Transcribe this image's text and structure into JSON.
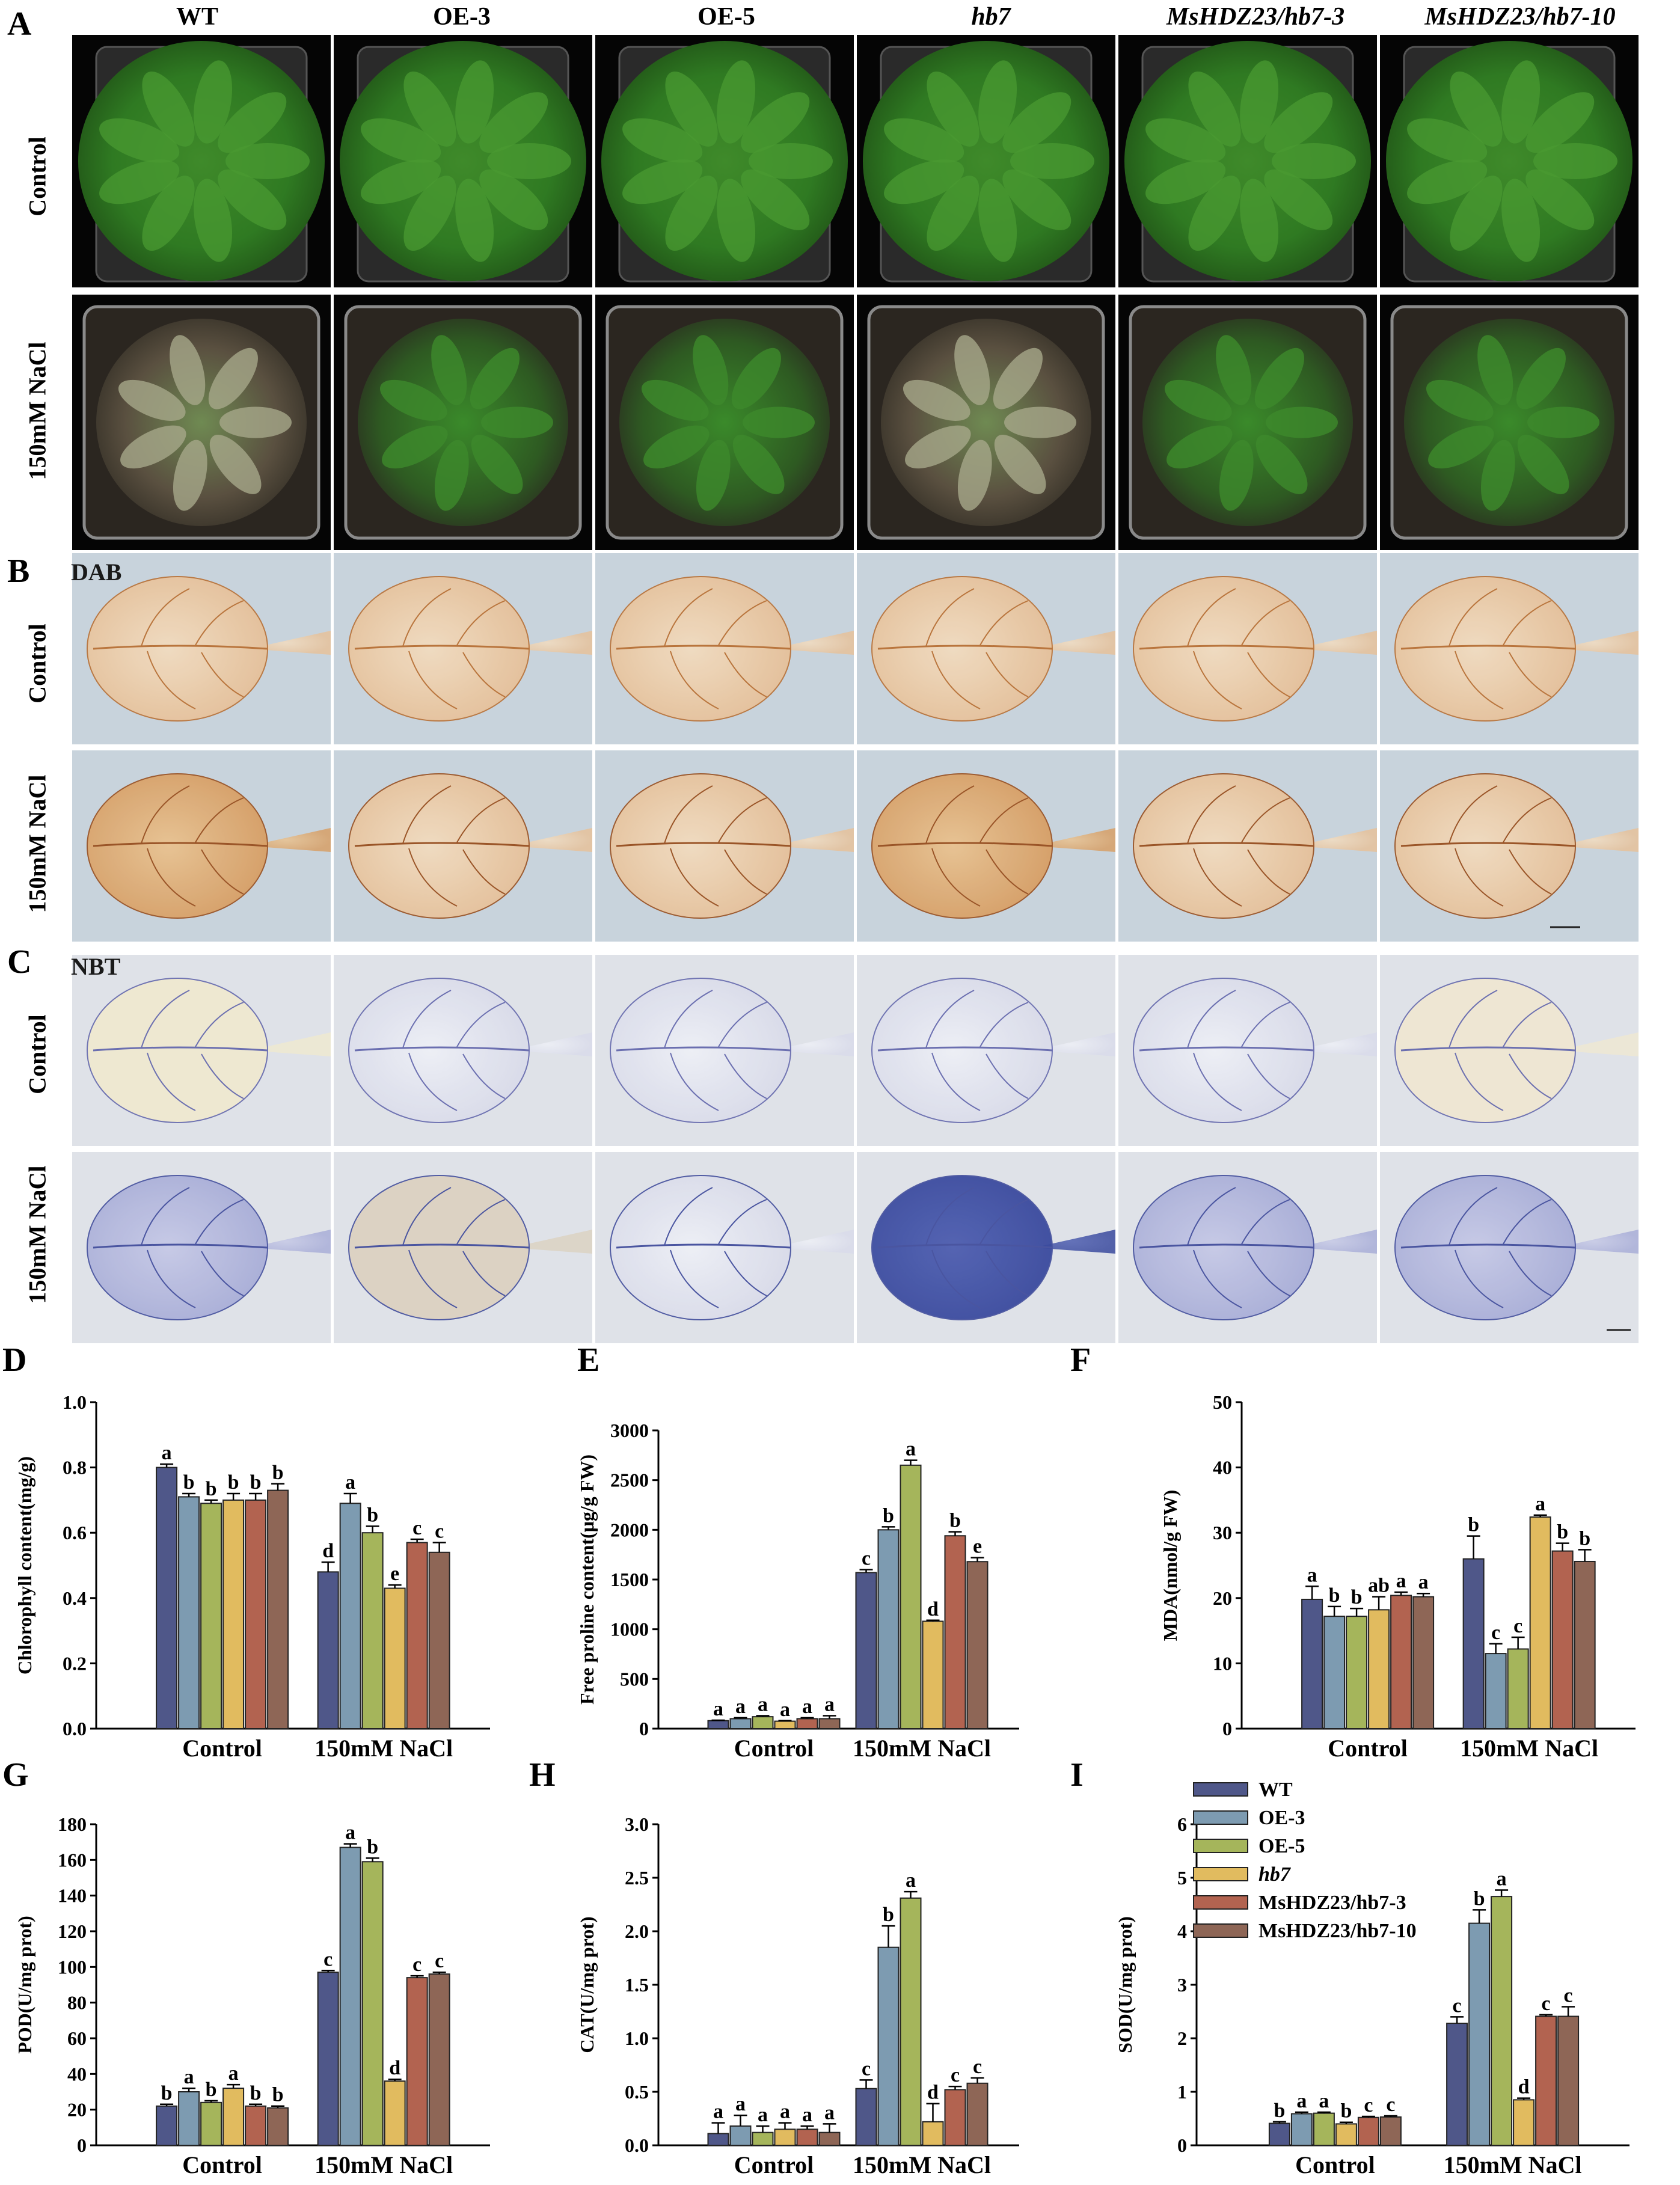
{
  "panels_top": {
    "A": {
      "letter": "A",
      "columns": [
        "WT",
        "OE-3",
        "OE-5",
        "hb7",
        "MsHDZ23/hb7-3",
        "MsHDZ23/hb7-10"
      ],
      "italic_columns": [
        3,
        4,
        5
      ],
      "rows": [
        "Control",
        "150mM NaCl"
      ]
    },
    "B": {
      "letter": "B",
      "stain": "DAB",
      "rows": [
        "Control",
        "150mM NaCl"
      ]
    },
    "C": {
      "letter": "C",
      "stain": "NBT",
      "rows": [
        "Control",
        "150mM NaCl"
      ]
    }
  },
  "colors": {
    "WT": "#4f5789",
    "OE-3": "#7d9bb1",
    "OE-5": "#a5b55b",
    "hb7": "#e1bb5f",
    "MsHDZ23/hb7-3": "#b26350",
    "MsHDZ23/hb7-10": "#8e6656"
  },
  "chart_data": [
    {
      "panel": "D",
      "type": "bar",
      "categories": [
        "Control",
        "150mM NaCl"
      ],
      "ylabel": "Chlorophyll content(mg/g)",
      "ylim": [
        0,
        1.0
      ],
      "yticks": [
        "0.0",
        "0.2",
        "0.4",
        "0.6",
        "0.8",
        "1.0"
      ],
      "series": [
        {
          "values": [
            0.8,
            0.48
          ],
          "errors": [
            0.01,
            0.03
          ],
          "letters": [
            "a",
            "d"
          ]
        },
        {
          "values": [
            0.71,
            0.69
          ],
          "errors": [
            0.01,
            0.03
          ],
          "letters": [
            "b",
            "a"
          ]
        },
        {
          "values": [
            0.69,
            0.6
          ],
          "errors": [
            0.01,
            0.02
          ],
          "letters": [
            "b",
            "b"
          ]
        },
        {
          "values": [
            0.7,
            0.43
          ],
          "errors": [
            0.02,
            0.01
          ],
          "letters": [
            "b",
            "e"
          ]
        },
        {
          "values": [
            0.7,
            0.57
          ],
          "errors": [
            0.02,
            0.01
          ],
          "letters": [
            "b",
            "c"
          ]
        },
        {
          "values": [
            0.73,
            0.54
          ],
          "errors": [
            0.02,
            0.03
          ],
          "letters": [
            "b",
            "c"
          ]
        }
      ]
    },
    {
      "panel": "E",
      "type": "bar",
      "categories": [
        "Control",
        "150mM NaCl"
      ],
      "ylabel": "Free proline content(μg/g FW)",
      "ylim": [
        0,
        3000
      ],
      "yticks": [
        "0",
        "500",
        "1000",
        "1500",
        "2000",
        "2500",
        "3000"
      ],
      "series": [
        {
          "values": [
            80,
            1570
          ],
          "errors": [
            5,
            30
          ],
          "letters": [
            "a",
            "c"
          ]
        },
        {
          "values": [
            100,
            2000
          ],
          "errors": [
            10,
            30
          ],
          "letters": [
            "a",
            "b"
          ]
        },
        {
          "values": [
            120,
            2650
          ],
          "errors": [
            10,
            50
          ],
          "letters": [
            "a",
            "a"
          ]
        },
        {
          "values": [
            75,
            1080
          ],
          "errors": [
            5,
            10
          ],
          "letters": [
            "a",
            "d"
          ]
        },
        {
          "values": [
            100,
            1940
          ],
          "errors": [
            10,
            40
          ],
          "letters": [
            "a",
            "b"
          ]
        },
        {
          "values": [
            100,
            1680
          ],
          "errors": [
            30,
            40
          ],
          "letters": [
            "a",
            "e"
          ]
        }
      ]
    },
    {
      "panel": "F",
      "type": "bar",
      "categories": [
        "Control",
        "150mM NaCl"
      ],
      "ylabel": "MDA(nmol/g FW)",
      "ylim": [
        0,
        50
      ],
      "yticks": [
        "0",
        "10",
        "20",
        "30",
        "40",
        "50"
      ],
      "series": [
        {
          "values": [
            19.8,
            26.0
          ],
          "errors": [
            2.0,
            3.5
          ],
          "letters": [
            "a",
            "b"
          ]
        },
        {
          "values": [
            17.2,
            11.5
          ],
          "errors": [
            1.5,
            1.5
          ],
          "letters": [
            "b",
            "c"
          ]
        },
        {
          "values": [
            17.2,
            12.2
          ],
          "errors": [
            1.2,
            1.8
          ],
          "letters": [
            "b",
            "c"
          ]
        },
        {
          "values": [
            18.2,
            32.4
          ],
          "errors": [
            2.0,
            0.3
          ],
          "letters": [
            "ab",
            "a"
          ]
        },
        {
          "values": [
            20.4,
            27.2
          ],
          "errors": [
            0.5,
            1.2
          ],
          "letters": [
            "a",
            "b"
          ]
        },
        {
          "values": [
            20.2,
            25.6
          ],
          "errors": [
            0.5,
            1.8
          ],
          "letters": [
            "a",
            "b"
          ]
        }
      ]
    },
    {
      "panel": "G",
      "type": "bar",
      "categories": [
        "Control",
        "150mM NaCl"
      ],
      "ylabel": "POD(U/mg prot)",
      "ylim": [
        0,
        180
      ],
      "yticks": [
        "0",
        "20",
        "40",
        "60",
        "80",
        "100",
        "120",
        "140",
        "160",
        "180"
      ],
      "series": [
        {
          "values": [
            22,
            97
          ],
          "errors": [
            1,
            1
          ],
          "letters": [
            "b",
            "c"
          ]
        },
        {
          "values": [
            30,
            167
          ],
          "errors": [
            2,
            2
          ],
          "letters": [
            "a",
            "a"
          ]
        },
        {
          "values": [
            24,
            159
          ],
          "errors": [
            1,
            2
          ],
          "letters": [
            "b",
            "b"
          ]
        },
        {
          "values": [
            32,
            36
          ],
          "errors": [
            2,
            1
          ],
          "letters": [
            "a",
            "d"
          ]
        },
        {
          "values": [
            22,
            94
          ],
          "errors": [
            1,
            1
          ],
          "letters": [
            "b",
            "c"
          ]
        },
        {
          "values": [
            21,
            96
          ],
          "errors": [
            1,
            1
          ],
          "letters": [
            "b",
            "c"
          ]
        }
      ]
    },
    {
      "panel": "H",
      "type": "bar",
      "categories": [
        "Control",
        "150mM NaCl"
      ],
      "ylabel": "CAT(U/mg prot)",
      "ylim": [
        0,
        3.0
      ],
      "yticks": [
        "0.0",
        "0.5",
        "1.0",
        "1.5",
        "2.0",
        "2.5",
        "3.0"
      ],
      "series": [
        {
          "values": [
            0.11,
            0.53
          ],
          "errors": [
            0.1,
            0.08
          ],
          "letters": [
            "a",
            "c"
          ]
        },
        {
          "values": [
            0.18,
            1.85
          ],
          "errors": [
            0.1,
            0.2
          ],
          "letters": [
            "a",
            "b"
          ]
        },
        {
          "values": [
            0.12,
            2.31
          ],
          "errors": [
            0.06,
            0.06
          ],
          "letters": [
            "a",
            "a"
          ]
        },
        {
          "values": [
            0.15,
            0.22
          ],
          "errors": [
            0.06,
            0.17
          ],
          "letters": [
            "a",
            "d"
          ]
        },
        {
          "values": [
            0.15,
            0.52
          ],
          "errors": [
            0.03,
            0.03
          ],
          "letters": [
            "a",
            "c"
          ]
        },
        {
          "values": [
            0.12,
            0.58
          ],
          "errors": [
            0.08,
            0.05
          ],
          "letters": [
            "a",
            "c"
          ]
        }
      ]
    },
    {
      "panel": "I",
      "type": "bar",
      "categories": [
        "Control",
        "150mM NaCl"
      ],
      "ylabel": "SOD(U/mg prot)",
      "ylim": [
        0,
        6
      ],
      "yticks": [
        "0",
        "1",
        "2",
        "3",
        "4",
        "5",
        "6"
      ],
      "legend": [
        "WT",
        "OE-3",
        "OE-5",
        "hb7",
        "MsHDZ23/hb7-3",
        "MsHDZ23/hb7-10"
      ],
      "legend_italic": [
        3
      ],
      "legend_position": "top-right",
      "series": [
        {
          "values": [
            0.41,
            2.28
          ],
          "errors": [
            0.03,
            0.12
          ],
          "letters": [
            "b",
            "c"
          ]
        },
        {
          "values": [
            0.59,
            4.15
          ],
          "errors": [
            0.03,
            0.25
          ],
          "letters": [
            "a",
            "b"
          ]
        },
        {
          "values": [
            0.6,
            4.65
          ],
          "errors": [
            0.02,
            0.12
          ],
          "letters": [
            "a",
            "a"
          ]
        },
        {
          "values": [
            0.4,
            0.85
          ],
          "errors": [
            0.03,
            0.03
          ],
          "letters": [
            "b",
            "d"
          ]
        },
        {
          "values": [
            0.52,
            2.41
          ],
          "errors": [
            0.02,
            0.03
          ],
          "letters": [
            "c",
            "c"
          ]
        },
        {
          "values": [
            0.53,
            2.41
          ],
          "errors": [
            0.02,
            0.18
          ],
          "letters": [
            "c",
            "c"
          ]
        }
      ]
    }
  ]
}
